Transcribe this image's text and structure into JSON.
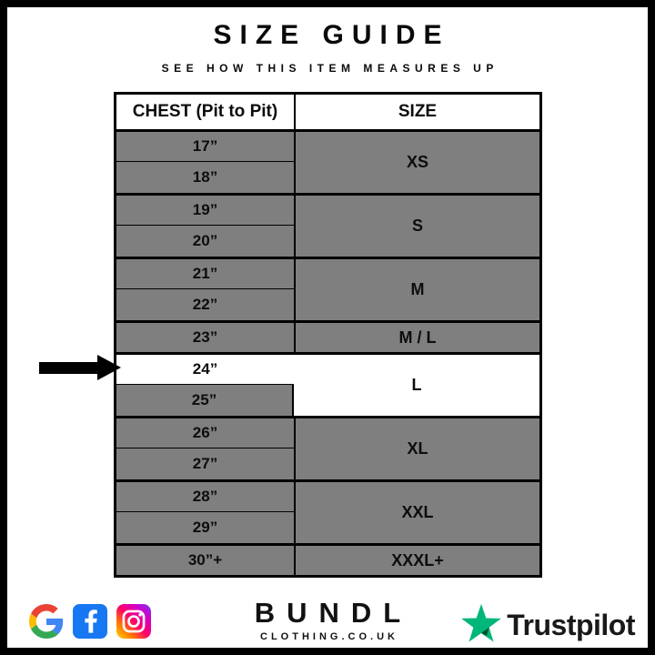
{
  "header": {
    "title": "SIZE GUIDE",
    "subtitle": "SEE HOW THIS ITEM MEASURES UP"
  },
  "table": {
    "col1_header": "CHEST (Pit to Pit)",
    "col2_header": "SIZE",
    "groups": [
      {
        "size": "XS",
        "chest": [
          "17”",
          "18”"
        ],
        "highlighted": false
      },
      {
        "size": "S",
        "chest": [
          "19”",
          "20”"
        ],
        "highlighted": false
      },
      {
        "size": "M",
        "chest": [
          "21”",
          "22”"
        ],
        "highlighted": false
      },
      {
        "size": "M / L",
        "chest": [
          "23”"
        ],
        "highlighted": false
      },
      {
        "size": "L",
        "chest": [
          "24”",
          "25”"
        ],
        "highlighted": true,
        "highlighted_chest": "24”"
      },
      {
        "size": "XL",
        "chest": [
          "26”",
          "27”"
        ],
        "highlighted": false
      },
      {
        "size": "XXL",
        "chest": [
          "28”",
          "29”"
        ],
        "highlighted": false
      },
      {
        "size": "XXXL+",
        "chest": [
          "30”+"
        ],
        "highlighted": false
      }
    ]
  },
  "chart_data": {
    "type": "table",
    "title": "SIZE GUIDE",
    "subtitle": "SEE HOW THIS ITEM MEASURES UP",
    "columns": [
      "CHEST (Pit to Pit)",
      "SIZE"
    ],
    "rows": [
      [
        "17”",
        "XS"
      ],
      [
        "18”",
        "XS"
      ],
      [
        "19”",
        "S"
      ],
      [
        "20”",
        "S"
      ],
      [
        "21”",
        "M"
      ],
      [
        "22”",
        "M"
      ],
      [
        "23”",
        "M / L"
      ],
      [
        "24”",
        "L"
      ],
      [
        "25”",
        "L"
      ],
      [
        "26”",
        "XL"
      ],
      [
        "27”",
        "XL"
      ],
      [
        "28”",
        "XXL"
      ],
      [
        "29”",
        "XXL"
      ],
      [
        "30”+",
        "XXXL+"
      ]
    ],
    "highlighted_row": [
      "24”",
      "L"
    ],
    "layout_hints": {
      "merged_size_column": true,
      "arrow_marker_row": "24”"
    }
  },
  "footer": {
    "brand": "BUNDL",
    "brand_sub": "CLOTHING.CO.UK",
    "trustpilot": "Trustpilot",
    "social": [
      "google",
      "facebook",
      "instagram"
    ]
  },
  "colors": {
    "cell_gray": "#7f7f7f",
    "highlight_white": "#ffffff",
    "border_black": "#000000",
    "facebook_blue": "#1877F2",
    "instagram_gradient": [
      "#FFD600",
      "#FF7A00",
      "#FF0069",
      "#D300C5",
      "#7638FA"
    ],
    "trustpilot_green": "#00B67A",
    "trustpilot_text": "#191919",
    "google_blue": "#4285F4",
    "google_red": "#EA4335",
    "google_yellow": "#FBBC05",
    "google_green": "#34A853"
  }
}
